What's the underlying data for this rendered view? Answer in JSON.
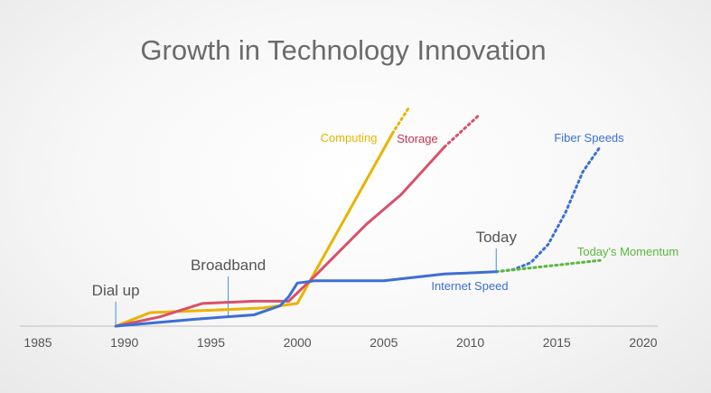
{
  "chart_data": {
    "type": "line",
    "title": "Growth in Technology Innovation",
    "xlabel": "",
    "ylabel": "",
    "xlim": [
      1985,
      2020
    ],
    "ylim": [
      0,
      100
    ],
    "grid": false,
    "x_ticks": [
      "1985",
      "1990",
      "1995",
      "2000",
      "2005",
      "2010",
      "2015",
      "2020"
    ],
    "series": [
      {
        "name": "Computing",
        "color": "#e8b400",
        "x": [
          1989.5,
          1991.5,
          1995,
          1998,
          2000,
          2005.5
        ],
        "y": [
          0,
          6,
          7,
          8,
          10,
          85
        ],
        "projection": {
          "x": [
            2005.5,
            2006.5
          ],
          "y": [
            85,
            97
          ]
        }
      },
      {
        "name": "Storage",
        "color": "#d9516a",
        "x": [
          1989.5,
          1992,
          1994.5,
          1997.5,
          1999.5,
          2001,
          2004,
          2006,
          2008.5
        ],
        "y": [
          0,
          4,
          10,
          11,
          11,
          22,
          45,
          58,
          79
        ],
        "projection": {
          "x": [
            2008.5,
            2010.5
          ],
          "y": [
            79,
            93
          ]
        }
      },
      {
        "name": "Internet Speed",
        "color": "#3c6fd4",
        "x": [
          1989.5,
          1991,
          1994,
          1997.5,
          1999,
          1999.5,
          2000,
          2001,
          2003,
          2005,
          2008.5,
          2011.5
        ],
        "y": [
          0,
          1,
          3,
          5,
          9,
          13,
          19,
          20,
          20,
          20,
          23,
          24
        ],
        "projection": null
      },
      {
        "name": "Fiber Speeds",
        "color": "#3c6fd4",
        "x": [],
        "y": [],
        "projection": {
          "x": [
            2011.5,
            2012.5,
            2013.5,
            2014.5,
            2015.5,
            2016.5,
            2017.5
          ],
          "y": [
            24,
            25,
            28,
            36,
            50,
            68,
            79
          ]
        }
      },
      {
        "name": "Today's Momentum",
        "color": "#5ab83c",
        "x": [],
        "y": [],
        "projection": {
          "x": [
            2011.5,
            2017.5
          ],
          "y": [
            24,
            29
          ]
        }
      }
    ],
    "annotations": [
      {
        "text": "Dial up",
        "x": 1989.5
      },
      {
        "text": "Broadband",
        "x": 1996
      },
      {
        "text": "Today",
        "x": 2011.5
      }
    ],
    "series_labels": [
      {
        "text": "Computing",
        "color": "#e8b400"
      },
      {
        "text": "Storage",
        "color": "#c8334f"
      },
      {
        "text": "Fiber Speeds",
        "color": "#3c6fd4"
      },
      {
        "text": "Today's Momentum",
        "color": "#5ab83c"
      },
      {
        "text": "Internet Speed",
        "color": "#3c6fd4"
      }
    ]
  }
}
